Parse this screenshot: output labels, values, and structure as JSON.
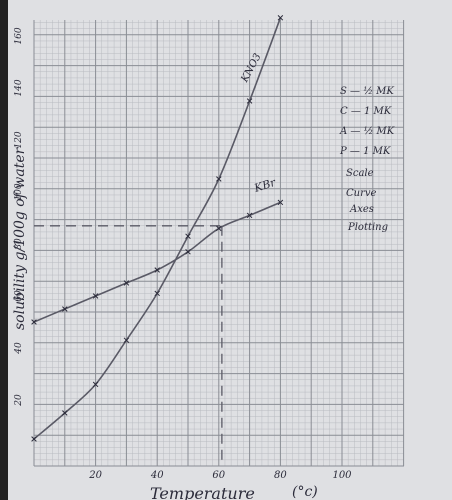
{
  "chart_data": {
    "type": "line",
    "title": "",
    "xlabel": "Temperature",
    "xunit": "(°c)",
    "ylabel": "solubility g/100g of water",
    "xlim": [
      0,
      100
    ],
    "ylim": [
      0,
      170
    ],
    "x_ticks": [
      20,
      40,
      60,
      80,
      100
    ],
    "y_ticks": [
      20,
      40,
      60,
      80,
      100,
      120,
      140,
      160
    ],
    "grid": true,
    "series": [
      {
        "name": "KNO3",
        "x": [
          0,
          10,
          20,
          30,
          40,
          50,
          60,
          70,
          80
        ],
        "y": [
          5,
          15,
          26,
          43,
          61,
          83,
          105,
          135,
          167
        ]
      },
      {
        "name": "KBr",
        "x": [
          0,
          10,
          20,
          30,
          40,
          50,
          60,
          70,
          80
        ],
        "y": [
          50,
          55,
          60,
          65,
          70,
          77,
          86,
          91,
          96
        ]
      }
    ],
    "reference_lines": {
      "y_value": 87,
      "x_value": 61
    }
  },
  "marking_scheme": [
    "S — ½ MK",
    "C — 1 MK",
    "A — ½ MK",
    "P — 1 MK",
    "Scale",
    "Curve",
    "Axes",
    "Plotting"
  ],
  "colors": {
    "paper": "#dfe0e3",
    "grid_major": "#8a8d94",
    "grid_minor": "#b9bbc1",
    "curve": "#5a5a66",
    "ink": "#2b2b3a"
  }
}
